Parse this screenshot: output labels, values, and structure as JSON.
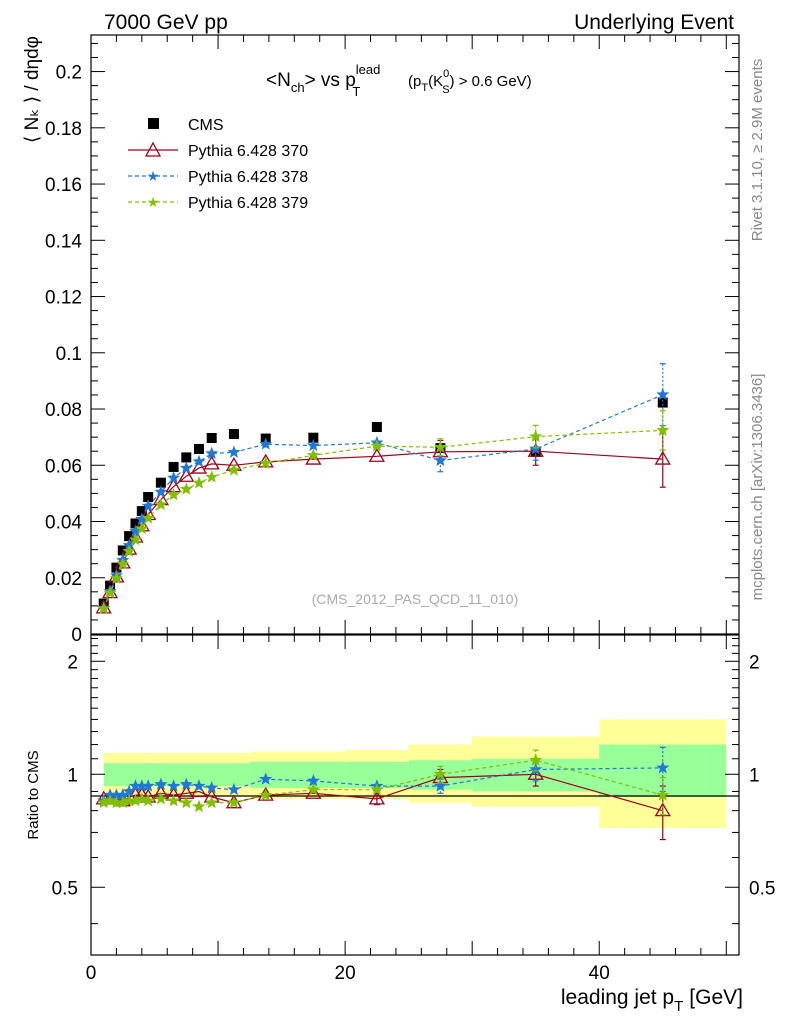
{
  "header": {
    "left": "7000 GeV pp",
    "right": "Underlying Event"
  },
  "side_text": {
    "rivet": "Rivet 3.1.10, ≥ 2.9M events",
    "mcplots": "mcplots.cern.ch [arXiv:1306.3436]"
  },
  "watermark": "(CMS_2012_PAS_QCD_11_010)",
  "colors": {
    "cms": "#000000",
    "p370": "#a0001c",
    "p378": "#1f78d8",
    "p379": "#80c000",
    "band_inner": "#99ff99",
    "band_outer": "#ffff99"
  },
  "chart_data": [
    {
      "type": "scatter",
      "title_parts": {
        "lhs": "<N",
        "lhs_sub": "ch",
        "mid": "> vs p",
        "p_sup": "lead",
        "p_sub": "T",
        "cut_a": "(p",
        "cut_a_sub": "T",
        "cut_b": "(K",
        "k_sup": "0",
        "k_sub": "S",
        "cut_c": ") > 0.6 GeV)"
      },
      "ylabel": "⟨ Nₖ ⟩ / dηdφ",
      "xlim": [
        0,
        51
      ],
      "ylim": [
        0,
        0.213
      ],
      "yticks": [
        "0.02",
        "0.04",
        "0.06",
        "0.08",
        "0.1",
        "0.12",
        "0.14",
        "0.16",
        "0.18",
        "0.2"
      ],
      "ytick_zero": "0",
      "legend_position": "top-left",
      "series": [
        {
          "name": "CMS",
          "marker": "square",
          "x": [
            1.0,
            1.5,
            2.0,
            2.5,
            3.0,
            3.5,
            4.0,
            4.5,
            5.5,
            6.5,
            7.5,
            8.5,
            9.5,
            11.25,
            13.75,
            17.5,
            22.5,
            27.5,
            35.0,
            45.0
          ],
          "y": [
            0.0108,
            0.0172,
            0.0236,
            0.0297,
            0.0348,
            0.0393,
            0.0437,
            0.0487,
            0.0538,
            0.0594,
            0.0628,
            0.0658,
            0.0697,
            0.0711,
            0.0695,
            0.0698,
            0.0736,
            0.0661,
            0.0648,
            0.0823
          ]
        },
        {
          "name": "Pythia 6.428 370",
          "marker": "triangle",
          "x": [
            1.0,
            1.5,
            2.0,
            2.5,
            3.0,
            3.5,
            4.0,
            4.5,
            5.5,
            6.5,
            7.5,
            8.5,
            9.5,
            11.25,
            13.75,
            17.5,
            22.5,
            27.5,
            35.0,
            45.0
          ],
          "y": [
            0.0093,
            0.0147,
            0.0203,
            0.0253,
            0.0302,
            0.0345,
            0.0385,
            0.0425,
            0.0478,
            0.0524,
            0.0561,
            0.059,
            0.0605,
            0.06,
            0.0612,
            0.0622,
            0.0632,
            0.0648,
            0.065,
            0.0622
          ],
          "yerr": [
            0,
            0,
            0,
            0,
            0,
            0,
            0,
            0,
            0,
            0,
            0,
            0,
            0,
            0,
            0,
            0,
            0,
            0.004,
            0.005,
            0.01
          ]
        },
        {
          "name": "Pythia 6.428 378",
          "marker": "star",
          "x": [
            1.0,
            1.5,
            2.0,
            2.5,
            3.0,
            3.5,
            4.0,
            4.5,
            5.5,
            6.5,
            7.5,
            8.5,
            9.5,
            11.25,
            13.75,
            17.5,
            22.5,
            27.5,
            35.0,
            45.0
          ],
          "y": [
            0.0092,
            0.0152,
            0.0208,
            0.0262,
            0.0315,
            0.0365,
            0.0408,
            0.0455,
            0.0505,
            0.0555,
            0.059,
            0.0613,
            0.0642,
            0.0646,
            0.0675,
            0.067,
            0.068,
            0.0617,
            0.0658,
            0.0851
          ],
          "yerr": [
            0,
            0,
            0,
            0,
            0,
            0,
            0,
            0,
            0,
            0,
            0,
            0,
            0,
            0,
            0,
            0,
            0,
            0.004,
            0.004,
            0.011
          ]
        },
        {
          "name": "Pythia 6.428 379",
          "marker": "star",
          "x": [
            1.0,
            1.5,
            2.0,
            2.5,
            3.0,
            3.5,
            4.0,
            4.5,
            5.5,
            6.5,
            7.5,
            8.5,
            9.5,
            11.25,
            13.75,
            17.5,
            22.5,
            27.5,
            35.0,
            45.0
          ],
          "y": [
            0.009,
            0.0146,
            0.0198,
            0.0249,
            0.0294,
            0.0335,
            0.0375,
            0.0412,
            0.046,
            0.0495,
            0.0515,
            0.0537,
            0.0558,
            0.0583,
            0.0607,
            0.0635,
            0.0668,
            0.0664,
            0.0702,
            0.0724
          ],
          "yerr": [
            0,
            0,
            0,
            0,
            0,
            0,
            0,
            0,
            0,
            0,
            0,
            0,
            0,
            0,
            0,
            0,
            0,
            0.003,
            0.004,
            0.007
          ]
        }
      ]
    },
    {
      "type": "scatter",
      "ylabel": "Ratio to CMS",
      "xlabel_main": "leading jet p",
      "xlabel_sub": "T",
      "xlabel_unit": "[GeV]",
      "xlim": [
        0,
        51
      ],
      "ylim": [
        0.33,
        2.35
      ],
      "xticks": [
        "0",
        "20",
        "40"
      ],
      "yticks": [
        "0.5",
        "1",
        "2"
      ],
      "bands": {
        "x_edges": [
          1.0,
          4.75,
          12.5,
          20.0,
          25.0,
          30.0,
          40.0,
          50.0
        ],
        "inner": [
          [
            0.93,
            1.07
          ],
          [
            0.93,
            1.07
          ],
          [
            0.92,
            1.08
          ],
          [
            0.92,
            1.08
          ],
          [
            0.91,
            1.09
          ],
          [
            0.9,
            1.1
          ],
          [
            0.87,
            1.2
          ]
        ],
        "outer": [
          [
            0.87,
            1.14
          ],
          [
            0.87,
            1.14
          ],
          [
            0.86,
            1.15
          ],
          [
            0.86,
            1.16
          ],
          [
            0.84,
            1.2
          ],
          [
            0.82,
            1.26
          ],
          [
            0.72,
            1.4
          ]
        ]
      },
      "series": [
        {
          "name": "Pythia 6.428 370",
          "x": [
            1.0,
            1.5,
            2.0,
            2.5,
            3.0,
            3.5,
            4.0,
            4.5,
            5.5,
            6.5,
            7.5,
            8.5,
            9.5,
            11.25,
            13.75,
            17.5,
            22.5,
            27.5,
            35.0,
            45.0
          ],
          "y": [
            0.86,
            0.86,
            0.86,
            0.85,
            0.87,
            0.88,
            0.88,
            0.87,
            0.89,
            0.88,
            0.89,
            0.9,
            0.87,
            0.84,
            0.88,
            0.89,
            0.86,
            0.98,
            1.0,
            0.8
          ],
          "yerr": [
            0,
            0,
            0,
            0,
            0,
            0,
            0,
            0,
            0,
            0,
            0,
            0,
            0,
            0,
            0,
            0,
            0.03,
            0.05,
            0.07,
            0.13
          ]
        },
        {
          "name": "Pythia 6.428 378",
          "x": [
            1.0,
            1.5,
            2.0,
            2.5,
            3.0,
            3.5,
            4.0,
            4.5,
            5.5,
            6.5,
            7.5,
            8.5,
            9.5,
            11.25,
            13.75,
            17.5,
            22.5,
            27.5,
            35.0,
            45.0
          ],
          "y": [
            0.85,
            0.88,
            0.88,
            0.88,
            0.9,
            0.93,
            0.93,
            0.93,
            0.94,
            0.93,
            0.94,
            0.93,
            0.92,
            0.91,
            0.97,
            0.96,
            0.93,
            0.93,
            1.03,
            1.04
          ],
          "yerr": [
            0,
            0,
            0,
            0,
            0,
            0,
            0,
            0,
            0,
            0,
            0,
            0,
            0,
            0,
            0,
            0,
            0,
            0.04,
            0.07,
            0.14
          ]
        },
        {
          "name": "Pythia 6.428 379",
          "x": [
            1.0,
            1.5,
            2.0,
            2.5,
            3.0,
            3.5,
            4.0,
            4.5,
            5.5,
            6.5,
            7.5,
            8.5,
            9.5,
            11.25,
            13.75,
            17.5,
            22.5,
            27.5,
            35.0,
            45.0
          ],
          "y": [
            0.84,
            0.85,
            0.84,
            0.84,
            0.85,
            0.85,
            0.86,
            0.85,
            0.86,
            0.85,
            0.84,
            0.82,
            0.84,
            0.84,
            0.88,
            0.91,
            0.91,
            1.0,
            1.09,
            0.88
          ],
          "yerr": [
            0,
            0,
            0,
            0,
            0,
            0,
            0,
            0,
            0,
            0,
            0,
            0,
            0,
            0,
            0,
            0,
            0,
            0.05,
            0.07,
            0.1
          ]
        }
      ]
    }
  ]
}
